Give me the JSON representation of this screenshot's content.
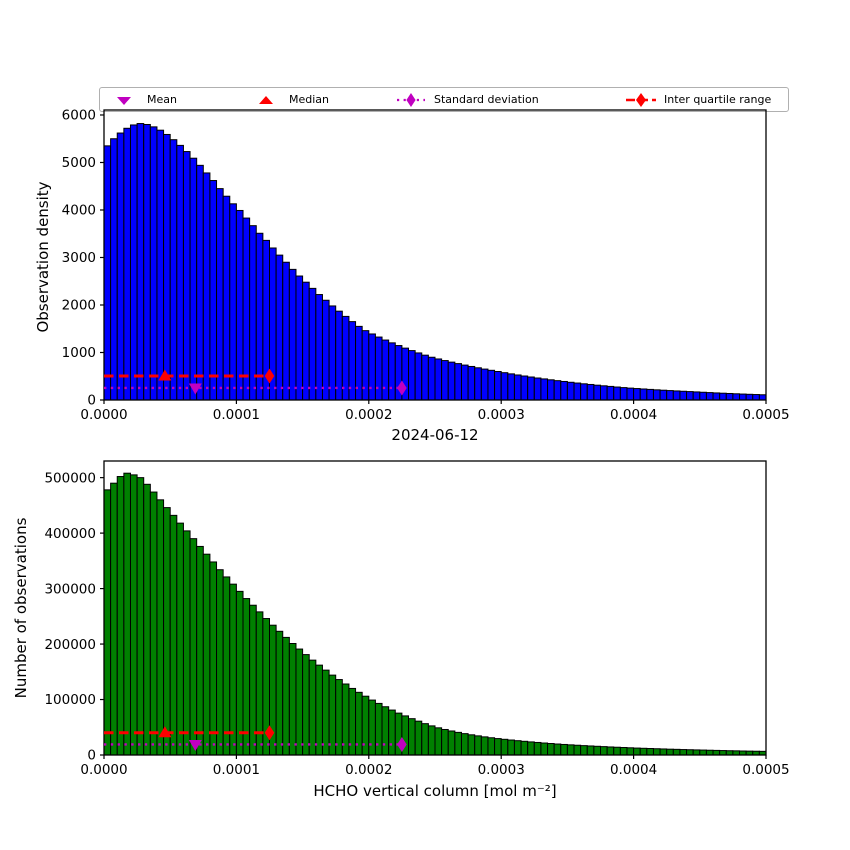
{
  "figure": {
    "title": "2024-06-12",
    "xlabel": "HCHO vertical column [mol m⁻²]",
    "background": "#ffffff"
  },
  "colors": {
    "top_bars": "#0000ff",
    "bottom_bars": "#008000",
    "bar_edge": "#000000",
    "mean_std": "#c000c0",
    "median_iqr": "#ff0000",
    "axis": "#000000"
  },
  "legend": {
    "items": [
      {
        "label": "Mean",
        "marker": "triangle-down",
        "color": "#c000c0"
      },
      {
        "label": "Median",
        "marker": "triangle-up",
        "color": "#ff0000"
      },
      {
        "label": "Standard deviation",
        "marker": "thin-diamond-on-dotted-line",
        "color": "#c000c0"
      },
      {
        "label": "Inter quartile range",
        "marker": "diamond-on-dashed-line",
        "color": "#ff0000"
      }
    ]
  },
  "chart_data": [
    {
      "type": "bar",
      "title": "2024-06-12",
      "ylabel": "Observation density",
      "xlabel": "",
      "xlim": [
        0,
        0.0005
      ],
      "ylim": [
        0,
        6105
      ],
      "bin_width": 5e-06,
      "bar_color": "#0000ff",
      "grid": false,
      "xticks": [
        {
          "v": 0.0,
          "label": "0.0000"
        },
        {
          "v": 0.0001,
          "label": "0.0001"
        },
        {
          "v": 0.0002,
          "label": "0.0002"
        },
        {
          "v": 0.0003,
          "label": "0.0003"
        },
        {
          "v": 0.0004,
          "label": "0.0004"
        },
        {
          "v": 0.0005,
          "label": "0.0005"
        }
      ],
      "yticks": [
        {
          "v": 0,
          "label": "0"
        },
        {
          "v": 1000,
          "label": "1000"
        },
        {
          "v": 2000,
          "label": "2000"
        },
        {
          "v": 3000,
          "label": "3000"
        },
        {
          "v": 4000,
          "label": "4000"
        },
        {
          "v": 5000,
          "label": "5000"
        },
        {
          "v": 6000,
          "label": "6000"
        }
      ],
      "stats": {
        "mean": 6.9e-05,
        "median": 4.6e-05,
        "iqr_upper": 0.000125,
        "std_upper": 0.000225,
        "iqr_line_y": 505,
        "std_line_y": 253
      },
      "values": [
        5350,
        5500,
        5620,
        5720,
        5790,
        5820,
        5800,
        5750,
        5680,
        5590,
        5480,
        5360,
        5230,
        5090,
        4940,
        4780,
        4620,
        4450,
        4290,
        4130,
        3990,
        3830,
        3670,
        3510,
        3360,
        3200,
        3050,
        2900,
        2750,
        2610,
        2480,
        2350,
        2220,
        2100,
        1980,
        1870,
        1760,
        1650,
        1550,
        1460,
        1390,
        1325,
        1262,
        1203,
        1146,
        1092,
        1040,
        991,
        944,
        900,
        864,
        830,
        797,
        766,
        735,
        706,
        678,
        651,
        625,
        600,
        575,
        550,
        527,
        505,
        484,
        463,
        444,
        425,
        407,
        390,
        373,
        357,
        341,
        327,
        312,
        299,
        286,
        273,
        261,
        250,
        241,
        232,
        223,
        214,
        206,
        198,
        191,
        184,
        177,
        170,
        163,
        156,
        149,
        143,
        137,
        131,
        125,
        120,
        115,
        110
      ]
    },
    {
      "type": "bar",
      "title": "",
      "ylabel": "Number of observations",
      "xlabel": "HCHO vertical column [mol m⁻²]",
      "xlim": [
        0,
        0.0005
      ],
      "ylim": [
        0,
        530000
      ],
      "bin_width": 5e-06,
      "bar_color": "#008000",
      "grid": false,
      "xticks": [
        {
          "v": 0.0,
          "label": "0.0000"
        },
        {
          "v": 0.0001,
          "label": "0.0001"
        },
        {
          "v": 0.0002,
          "label": "0.0002"
        },
        {
          "v": 0.0003,
          "label": "0.0003"
        },
        {
          "v": 0.0004,
          "label": "0.0004"
        },
        {
          "v": 0.0005,
          "label": "0.0005"
        }
      ],
      "yticks": [
        {
          "v": 0,
          "label": "0"
        },
        {
          "v": 100000,
          "label": "100000"
        },
        {
          "v": 200000,
          "label": "200000"
        },
        {
          "v": 300000,
          "label": "300000"
        },
        {
          "v": 400000,
          "label": "400000"
        },
        {
          "v": 500000,
          "label": "500000"
        }
      ],
      "stats": {
        "mean": 6.9e-05,
        "median": 4.6e-05,
        "iqr_upper": 0.000125,
        "std_upper": 0.000225,
        "iqr_line_y": 40000,
        "std_line_y": 19000
      },
      "values": [
        478000,
        490000,
        502000,
        508000,
        505000,
        500000,
        488000,
        474000,
        460000,
        446000,
        432000,
        418000,
        404000,
        390000,
        376000,
        362000,
        348000,
        334000,
        321000,
        308000,
        295000,
        282000,
        270000,
        258000,
        246000,
        234000,
        223000,
        212000,
        201000,
        191000,
        181000,
        171000,
        162000,
        153000,
        144000,
        136000,
        128000,
        120000,
        113000,
        106000,
        99000,
        93000,
        87000,
        81000,
        75500,
        70500,
        65500,
        61000,
        56500,
        52500,
        49000,
        46000,
        43300,
        40800,
        38500,
        36400,
        34500,
        32700,
        31100,
        29600,
        28300,
        27000,
        25800,
        24700,
        23600,
        22600,
        21600,
        20700,
        19800,
        19000,
        18300,
        17600,
        16900,
        16300,
        15700,
        15100,
        14500,
        14000,
        13500,
        13000,
        12500,
        12100,
        11700,
        11300,
        10900,
        10500,
        10200,
        9800,
        9500,
        9200,
        8900,
        8600,
        8300,
        8000,
        7700,
        7500,
        7200,
        7000,
        6800,
        6600
      ]
    }
  ]
}
